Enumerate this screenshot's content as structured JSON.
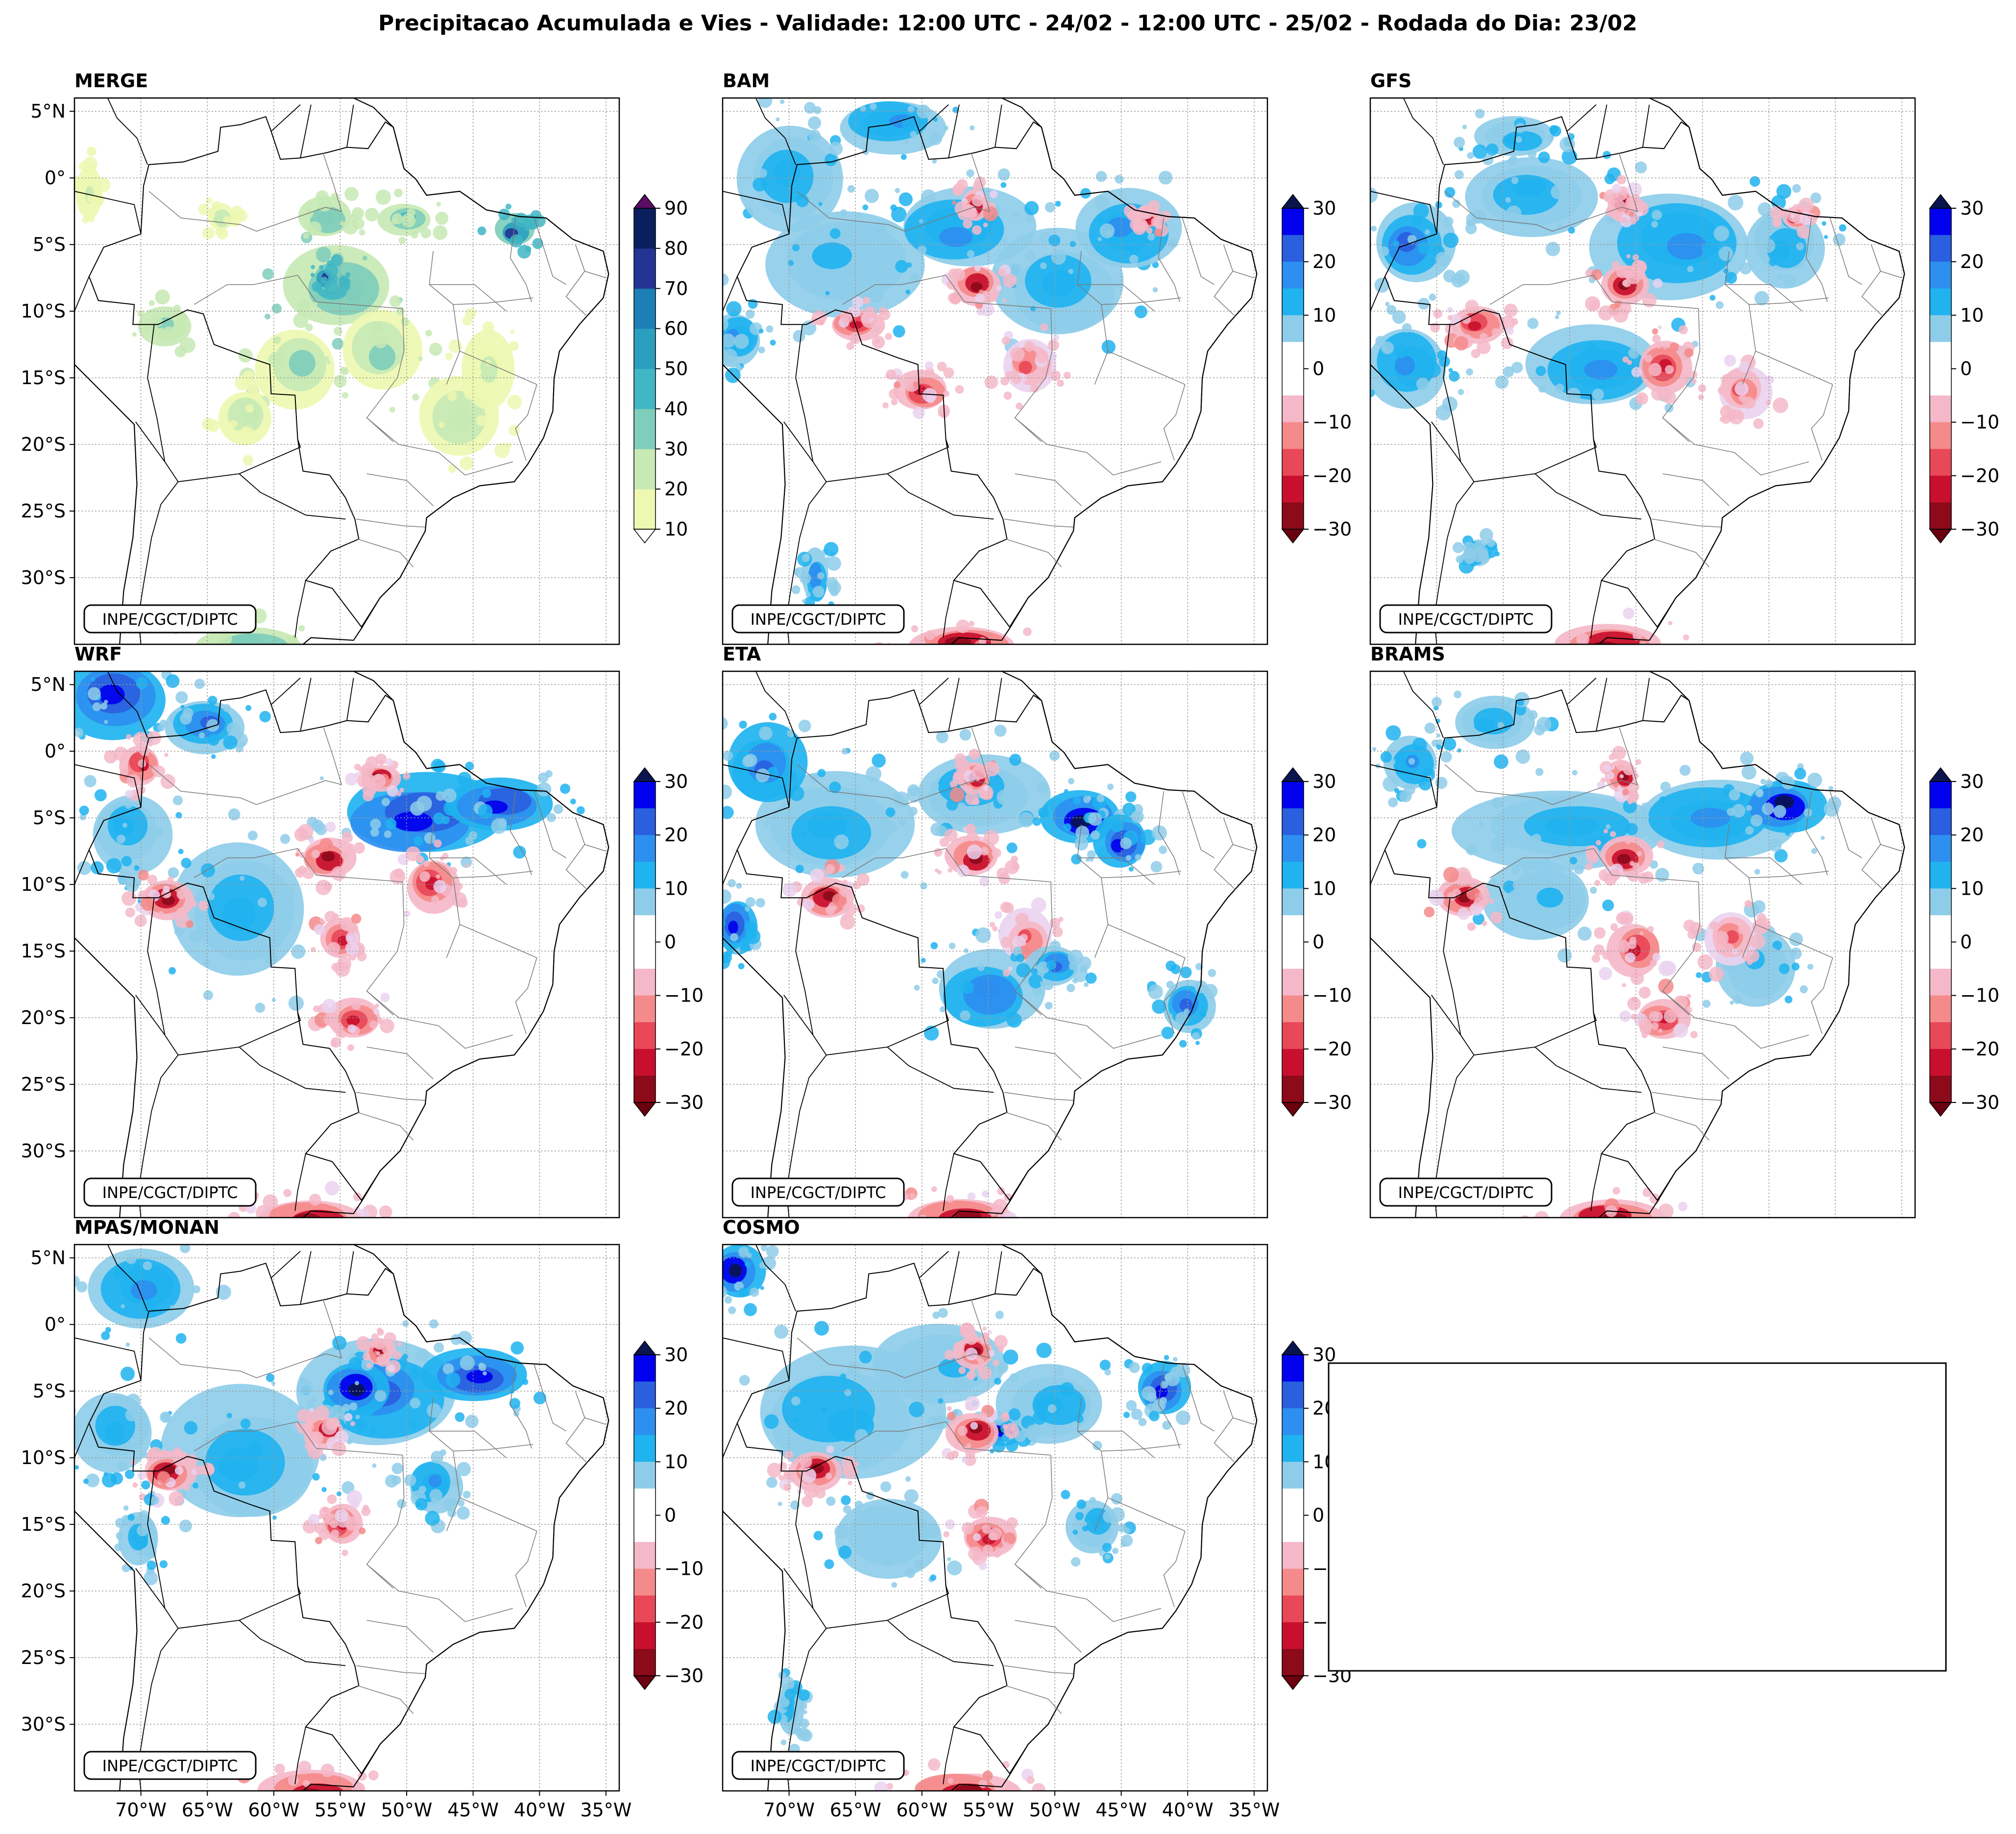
{
  "chart_data": {
    "type": "heatmap",
    "title": "Precipitacao Acumulada e Vies - Validade: 12:00 UTC - 24/02 - 12:00 UTC - 25/02 - Rodada do Dia: 23/02",
    "lat_labels": [
      "5°N",
      "0°",
      "5°S",
      "10°S",
      "15°S",
      "20°S",
      "25°S",
      "30°S"
    ],
    "lon_labels": [
      "70°W",
      "65°W",
      "60°W",
      "55°W",
      "50°W",
      "45°W",
      "40°W",
      "35°W"
    ],
    "lat_values": [
      5,
      0,
      -5,
      -10,
      -15,
      -20,
      -25,
      -30
    ],
    "lon_values": [
      -70,
      -65,
      -60,
      -55,
      -50,
      -45,
      -40,
      -35
    ],
    "extent": {
      "lon_min": -75,
      "lon_max": -34,
      "lat_min": -35,
      "lat_max": 6
    },
    "credit": "INPE/CGCT/DIPTC",
    "precip_colorbar": {
      "levels": [
        10,
        20,
        30,
        40,
        50,
        60,
        70,
        80,
        90
      ],
      "tick_labels": [
        "10",
        "20",
        "30",
        "40",
        "50",
        "60",
        "70",
        "80",
        "90"
      ],
      "colors": [
        "#edf8b1",
        "#c7e9b4",
        "#7fcdbb",
        "#41b6c4",
        "#2c9fbf",
        "#1d7fb5",
        "#253494",
        "#0b1f5e"
      ],
      "over_color": "#5b0d63",
      "under_color": "#ffffff"
    },
    "bias_colorbar": {
      "levels": [
        -30,
        -25,
        -20,
        -15,
        -10,
        -5,
        5,
        10,
        15,
        20,
        25,
        30
      ],
      "tick_labels": [
        "30",
        "20",
        "10",
        "0",
        "−10",
        "−20",
        "−30"
      ],
      "tick_values": [
        30,
        20,
        10,
        0,
        -10,
        -20,
        -30
      ],
      "colors": [
        "#8c0a1a",
        "#c8102e",
        "#e84858",
        "#f58a8a",
        "#f5b8c8",
        "#ead2ef",
        "#ffffff",
        "#8ecde9",
        "#1fb3f0",
        "#2d8ff0",
        "#2a5fe0",
        "#0000ee",
        "#0a1550"
      ],
      "over_color": "#0a1550",
      "under_color": "#6b0010"
    },
    "panels": [
      {
        "name": "MERGE",
        "type": "precipitation"
      },
      {
        "name": "BAM",
        "type": "bias"
      },
      {
        "name": "GFS",
        "type": "bias"
      },
      {
        "name": "WRF",
        "type": "bias"
      },
      {
        "name": "ETA",
        "type": "bias"
      },
      {
        "name": "BRAMS",
        "type": "bias"
      },
      {
        "name": "MPAS/MONAN",
        "type": "bias"
      },
      {
        "name": "COSMO",
        "type": "bias"
      }
    ]
  }
}
